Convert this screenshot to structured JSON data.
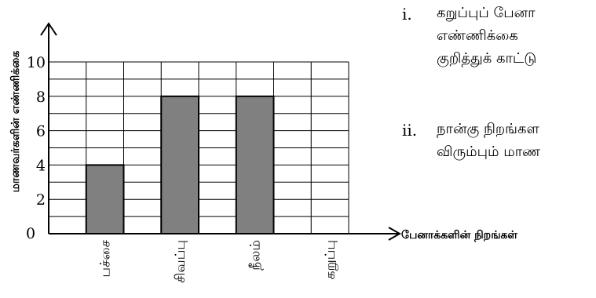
{
  "chart_data": {
    "type": "bar",
    "categories": [
      "பச்சை",
      "சிவப்பு",
      "நீலம்",
      "கறுப்பு"
    ],
    "values": [
      4,
      8,
      8,
      0
    ],
    "xlabel": "பேனாக்களின் நிறங்கள்",
    "ylabel": "மாணவர்களின் எண்ணிக்கை",
    "ylim": [
      0,
      10
    ],
    "yticks": [
      0,
      2,
      4,
      6,
      8,
      10
    ],
    "grid": true,
    "bar_color": "#808080",
    "x_origin_label": "0"
  },
  "questions": [
    {
      "number": "i.",
      "lines": [
        "கறுப்புப் பேனா",
        "எண்ணிக்கை",
        "குறித்துக் காட்டு"
      ]
    },
    {
      "number": "ii.",
      "lines": [
        "நான்கு நிறங்கள",
        "விரும்பும் மாண"
      ]
    }
  ]
}
